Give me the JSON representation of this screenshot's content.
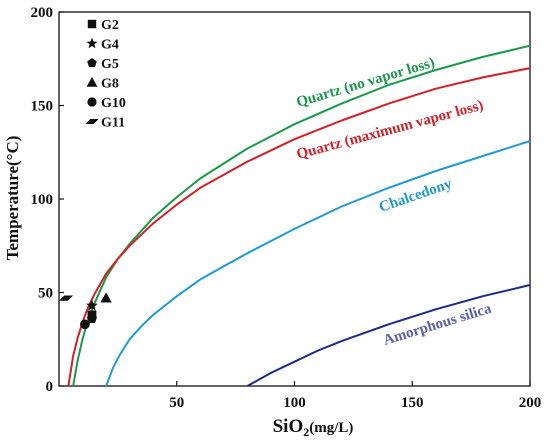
{
  "chart_data": {
    "type": "line",
    "xlabel_main": "SiO",
    "xlabel_sub": "2",
    "xlabel_unit": "(mg/L)",
    "ylabel": "Temperature(°C)",
    "xlim": [
      0,
      200
    ],
    "ylim": [
      0,
      200
    ],
    "x_ticks": [
      50,
      100,
      150,
      200
    ],
    "y_ticks": [
      0,
      50,
      100,
      150,
      200
    ],
    "grid": false,
    "legend_position": "top-left",
    "series": [
      {
        "name": "Quartz (no vapor loss)",
        "color": "#1a9a48",
        "x": [
          6,
          8,
          10,
          12,
          15,
          20,
          25,
          30,
          40,
          50,
          60,
          80,
          100,
          120,
          140,
          160,
          180,
          200
        ],
        "y": [
          0,
          14,
          25,
          34,
          44,
          58,
          68,
          76,
          90,
          101,
          111,
          127,
          140,
          151,
          161,
          169,
          176,
          182
        ]
      },
      {
        "name": "Quartz (maximum vapor loss)",
        "color": "#d42026",
        "x": [
          4,
          6,
          8,
          10,
          12,
          15,
          20,
          25,
          30,
          40,
          50,
          60,
          80,
          100,
          120,
          140,
          160,
          180,
          200
        ],
        "y": [
          0,
          16,
          26,
          34,
          41,
          49,
          60,
          68,
          75,
          87,
          97,
          106,
          120,
          132,
          142,
          151,
          159,
          165,
          170
        ]
      },
      {
        "name": "Chalcedony",
        "color": "#1f9bd4",
        "x": [
          20,
          23,
          26,
          30,
          35,
          40,
          50,
          60,
          70,
          80,
          100,
          120,
          140,
          160,
          180,
          200
        ],
        "y": [
          0,
          10,
          17,
          25,
          32,
          38,
          48,
          57,
          64,
          71,
          84,
          96,
          106,
          115,
          123,
          131
        ]
      },
      {
        "name": "Amorphous silica",
        "color": "#1b2a8a",
        "x": [
          80,
          90,
          100,
          110,
          120,
          140,
          160,
          180,
          200
        ],
        "y": [
          0,
          7,
          13,
          19,
          24,
          33,
          41,
          48,
          54
        ]
      }
    ],
    "samples": [
      {
        "name": "G2",
        "marker": "square",
        "x": 14,
        "y": 38
      },
      {
        "name": "G4",
        "marker": "star",
        "x": 14,
        "y": 43
      },
      {
        "name": "G5",
        "marker": "pentagon",
        "x": 14,
        "y": 36
      },
      {
        "name": "G8",
        "marker": "triangle",
        "x": 20,
        "y": 47
      },
      {
        "name": "G10",
        "marker": "circle",
        "x": 11,
        "y": 33
      },
      {
        "name": "G11",
        "marker": "parallelogram",
        "x": 3,
        "y": 47
      }
    ]
  }
}
